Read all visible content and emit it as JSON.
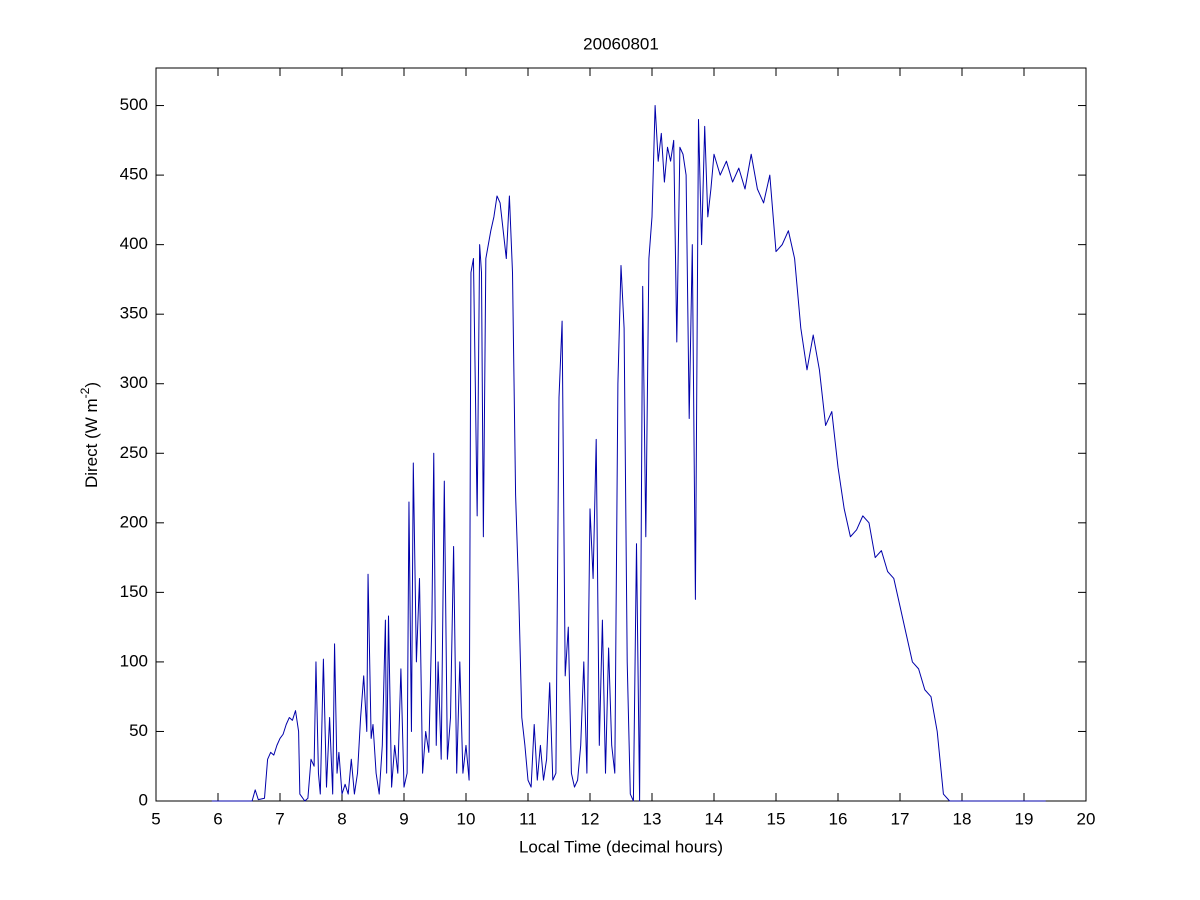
{
  "chart_data": {
    "type": "line",
    "title": "20060801",
    "xlabel": "Local Time (decimal hours)",
    "ylabel": {
      "text": "Direct (W m",
      "superscript": "-2",
      "suffix": ")"
    },
    "xlim": [
      5,
      20
    ],
    "xticks": [
      5,
      6,
      7,
      8,
      9,
      10,
      11,
      12,
      13,
      14,
      15,
      16,
      17,
      18,
      19,
      20
    ],
    "ylim": [
      0,
      527
    ],
    "yticks": [
      0,
      50,
      100,
      150,
      200,
      250,
      300,
      350,
      400,
      450,
      500
    ],
    "grid": false,
    "box": true,
    "series": [
      {
        "name": "Direct",
        "color": "#0000aa",
        "x": [
          5.9,
          6.55,
          6.6,
          6.65,
          6.75,
          6.8,
          6.85,
          6.9,
          6.95,
          7.0,
          7.05,
          7.1,
          7.15,
          7.2,
          7.25,
          7.3,
          7.32,
          7.4,
          7.45,
          7.5,
          7.55,
          7.58,
          7.62,
          7.65,
          7.7,
          7.75,
          7.8,
          7.85,
          7.88,
          7.92,
          7.95,
          8.0,
          8.05,
          8.1,
          8.15,
          8.2,
          8.25,
          8.3,
          8.35,
          8.4,
          8.42,
          8.47,
          8.5,
          8.55,
          8.6,
          8.65,
          8.7,
          8.72,
          8.75,
          8.8,
          8.85,
          8.9,
          8.95,
          9.0,
          9.05,
          9.08,
          9.12,
          9.15,
          9.2,
          9.25,
          9.3,
          9.35,
          9.4,
          9.45,
          9.48,
          9.52,
          9.55,
          9.6,
          9.65,
          9.7,
          9.75,
          9.8,
          9.85,
          9.9,
          9.95,
          10.0,
          10.05,
          10.08,
          10.12,
          10.15,
          10.18,
          10.22,
          10.25,
          10.28,
          10.32,
          10.4,
          10.45,
          10.5,
          10.55,
          10.6,
          10.65,
          10.7,
          10.75,
          10.8,
          10.85,
          10.9,
          10.95,
          11.0,
          11.05,
          11.1,
          11.15,
          11.2,
          11.25,
          11.3,
          11.35,
          11.4,
          11.45,
          11.5,
          11.55,
          11.6,
          11.65,
          11.7,
          11.75,
          11.8,
          11.85,
          11.9,
          11.95,
          12.0,
          12.05,
          12.1,
          12.15,
          12.2,
          12.25,
          12.3,
          12.35,
          12.4,
          12.45,
          12.5,
          12.55,
          12.6,
          12.65,
          12.7,
          12.75,
          12.8,
          12.85,
          12.9,
          12.95,
          13.0,
          13.05,
          13.1,
          13.15,
          13.2,
          13.25,
          13.3,
          13.35,
          13.4,
          13.45,
          13.5,
          13.55,
          13.6,
          13.65,
          13.7,
          13.75,
          13.8,
          13.85,
          13.9,
          13.95,
          14.0,
          14.1,
          14.2,
          14.3,
          14.4,
          14.5,
          14.6,
          14.7,
          14.8,
          14.9,
          15.0,
          15.1,
          15.2,
          15.3,
          15.4,
          15.5,
          15.6,
          15.7,
          15.8,
          15.9,
          16.0,
          16.1,
          16.2,
          16.3,
          16.4,
          16.5,
          16.6,
          16.7,
          16.8,
          16.9,
          17.0,
          17.1,
          17.2,
          17.3,
          17.4,
          17.5,
          17.6,
          17.7,
          17.8,
          19.35
        ],
        "values": [
          0,
          0,
          8,
          1,
          2,
          30,
          35,
          33,
          40,
          45,
          48,
          55,
          60,
          58,
          65,
          50,
          5,
          0,
          2,
          30,
          25,
          100,
          20,
          5,
          102,
          10,
          60,
          5,
          113,
          20,
          35,
          5,
          12,
          5,
          30,
          5,
          20,
          60,
          90,
          50,
          163,
          45,
          55,
          20,
          5,
          40,
          130,
          20,
          133,
          10,
          40,
          20,
          95,
          10,
          20,
          215,
          50,
          243,
          100,
          160,
          20,
          50,
          35,
          130,
          250,
          40,
          100,
          30,
          230,
          30,
          60,
          183,
          20,
          100,
          20,
          40,
          15,
          380,
          390,
          300,
          205,
          400,
          380,
          190,
          390,
          410,
          420,
          435,
          430,
          410,
          390,
          435,
          380,
          220,
          150,
          60,
          40,
          15,
          10,
          55,
          15,
          40,
          15,
          30,
          85,
          15,
          20,
          290,
          345,
          90,
          125,
          20,
          10,
          15,
          40,
          100,
          20,
          210,
          160,
          260,
          40,
          130,
          20,
          110,
          40,
          20,
          300,
          385,
          340,
          100,
          5,
          0,
          185,
          0,
          370,
          190,
          390,
          420,
          500,
          460,
          480,
          445,
          470,
          460,
          475,
          330,
          470,
          465,
          450,
          275,
          400,
          145,
          490,
          400,
          485,
          420,
          440,
          465,
          450,
          460,
          445,
          455,
          440,
          465,
          440,
          430,
          450,
          395,
          400,
          410,
          390,
          340,
          310,
          335,
          310,
          270,
          280,
          240,
          210,
          190,
          195,
          205,
          200,
          175,
          180,
          165,
          160,
          140,
          120,
          100,
          95,
          80,
          75,
          50,
          5,
          0,
          0
        ]
      }
    ]
  }
}
